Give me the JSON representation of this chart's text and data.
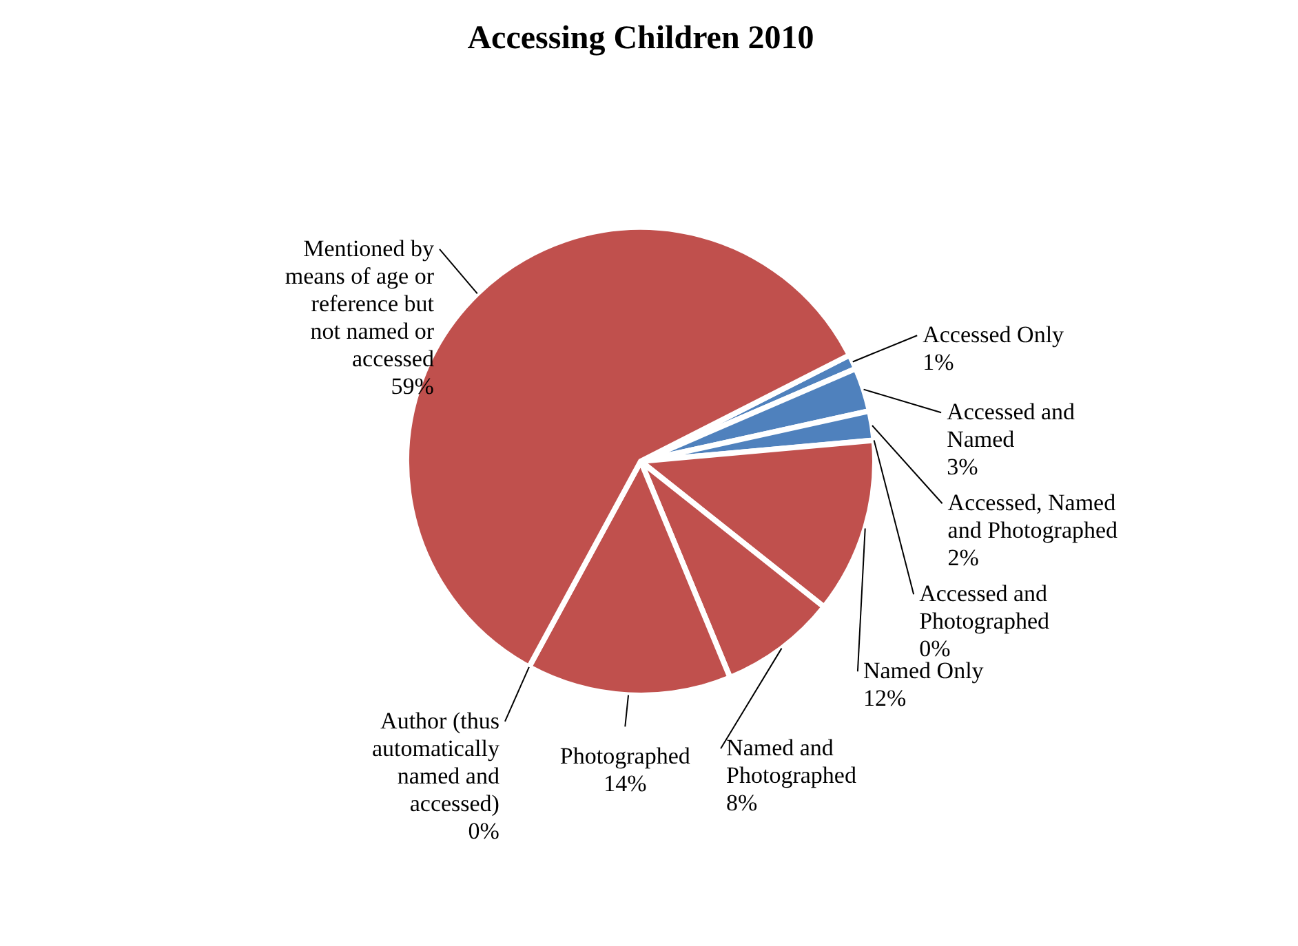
{
  "chart_data": {
    "type": "pie",
    "title": "Accessing Children 2010",
    "categories": [
      "Accessed Only",
      "Accessed and Named",
      "Accessed, Named and Photographed",
      "Accessed and Photographed",
      "Named Only",
      "Named and Photographed",
      "Photographed",
      "Author (thus automatically named and accessed)",
      "Mentioned by means of age or reference but not named or accessed"
    ],
    "values": [
      1,
      3,
      2,
      0,
      12,
      8,
      14,
      0,
      59
    ],
    "value_labels": [
      "1%",
      "3%",
      "2%",
      "0%",
      "12%",
      "8%",
      "14%",
      "0%",
      "59%"
    ],
    "colors": [
      "#4f81bd",
      "#4f81bd",
      "#4f81bd",
      "#4f81bd",
      "#c0504d",
      "#c0504d",
      "#c0504d",
      "#c0504d",
      "#c0504d"
    ],
    "legend": false
  }
}
